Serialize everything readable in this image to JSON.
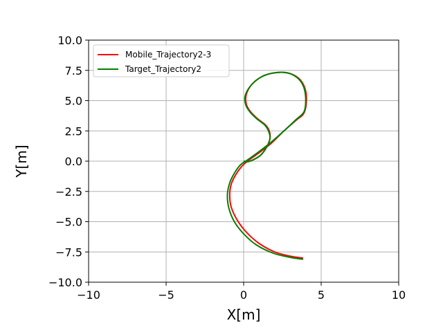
{
  "chart_data": {
    "type": "line",
    "title": "",
    "xlabel": "X[m]",
    "ylabel": "Y[m]",
    "xlim": [
      -10,
      10
    ],
    "ylim": [
      -10,
      10
    ],
    "xticks": [
      -10,
      -5,
      0,
      5,
      10
    ],
    "yticks": [
      -10.0,
      -7.5,
      -5.0,
      -2.5,
      0.0,
      2.5,
      5.0,
      7.5,
      10.0
    ],
    "xtick_labels": [
      "−10",
      "−5",
      "0",
      "5",
      "10"
    ],
    "ytick_labels": [
      "−10.0",
      "−7.5",
      "−5.0",
      "−2.5",
      "0.0",
      "2.5",
      "5.0",
      "7.5",
      "10.0"
    ],
    "grid": true,
    "legend_position": "top-left",
    "series": [
      {
        "name": "Mobile_Trajectory2-3",
        "color": "#ff0000",
        "x": [
          3.8,
          3.0,
          2.0,
          1.0,
          0.2,
          -0.4,
          -0.8,
          -0.9,
          -0.8,
          -0.5,
          -0.1,
          0.3,
          1.0,
          1.8,
          2.6,
          3.4,
          3.9,
          4.05,
          3.9,
          3.5,
          2.8,
          2.0,
          1.2,
          0.5,
          0.15,
          0.2,
          0.5,
          0.9,
          1.4,
          1.65,
          1.7,
          1.5,
          1.1,
          0.6,
          0.25,
          0.05
        ],
        "y": [
          -8.0,
          -7.85,
          -7.5,
          -6.8,
          -5.9,
          -4.9,
          -3.8,
          -2.8,
          -1.9,
          -1.1,
          -0.4,
          0.05,
          0.7,
          1.5,
          2.5,
          3.4,
          4.0,
          5.2,
          6.2,
          6.9,
          7.3,
          7.3,
          7.0,
          6.3,
          5.4,
          4.6,
          4.0,
          3.5,
          3.0,
          2.5,
          1.9,
          1.2,
          0.5,
          0.1,
          -0.05,
          0.0
        ]
      },
      {
        "name": "Target_Trajectory2",
        "color": "#008000",
        "x": [
          3.8,
          3.0,
          1.9,
          0.8,
          0.0,
          -0.6,
          -0.95,
          -1.05,
          -0.9,
          -0.6,
          -0.2,
          0.25,
          1.0,
          1.8,
          2.6,
          3.35,
          3.9,
          4.0,
          3.85,
          3.45,
          2.8,
          2.0,
          1.2,
          0.5,
          0.1,
          0.15,
          0.45,
          0.85,
          1.35,
          1.6,
          1.7,
          1.5,
          1.1,
          0.6,
          0.25,
          0.05
        ],
        "y": [
          -8.1,
          -7.95,
          -7.6,
          -6.9,
          -6.0,
          -5.0,
          -3.9,
          -2.8,
          -1.8,
          -1.0,
          -0.3,
          0.1,
          0.8,
          1.6,
          2.5,
          3.4,
          4.1,
          5.2,
          6.2,
          6.9,
          7.3,
          7.3,
          7.0,
          6.3,
          5.4,
          4.6,
          4.0,
          3.5,
          3.0,
          2.5,
          1.9,
          1.2,
          0.5,
          0.1,
          -0.05,
          0.0
        ]
      }
    ]
  }
}
